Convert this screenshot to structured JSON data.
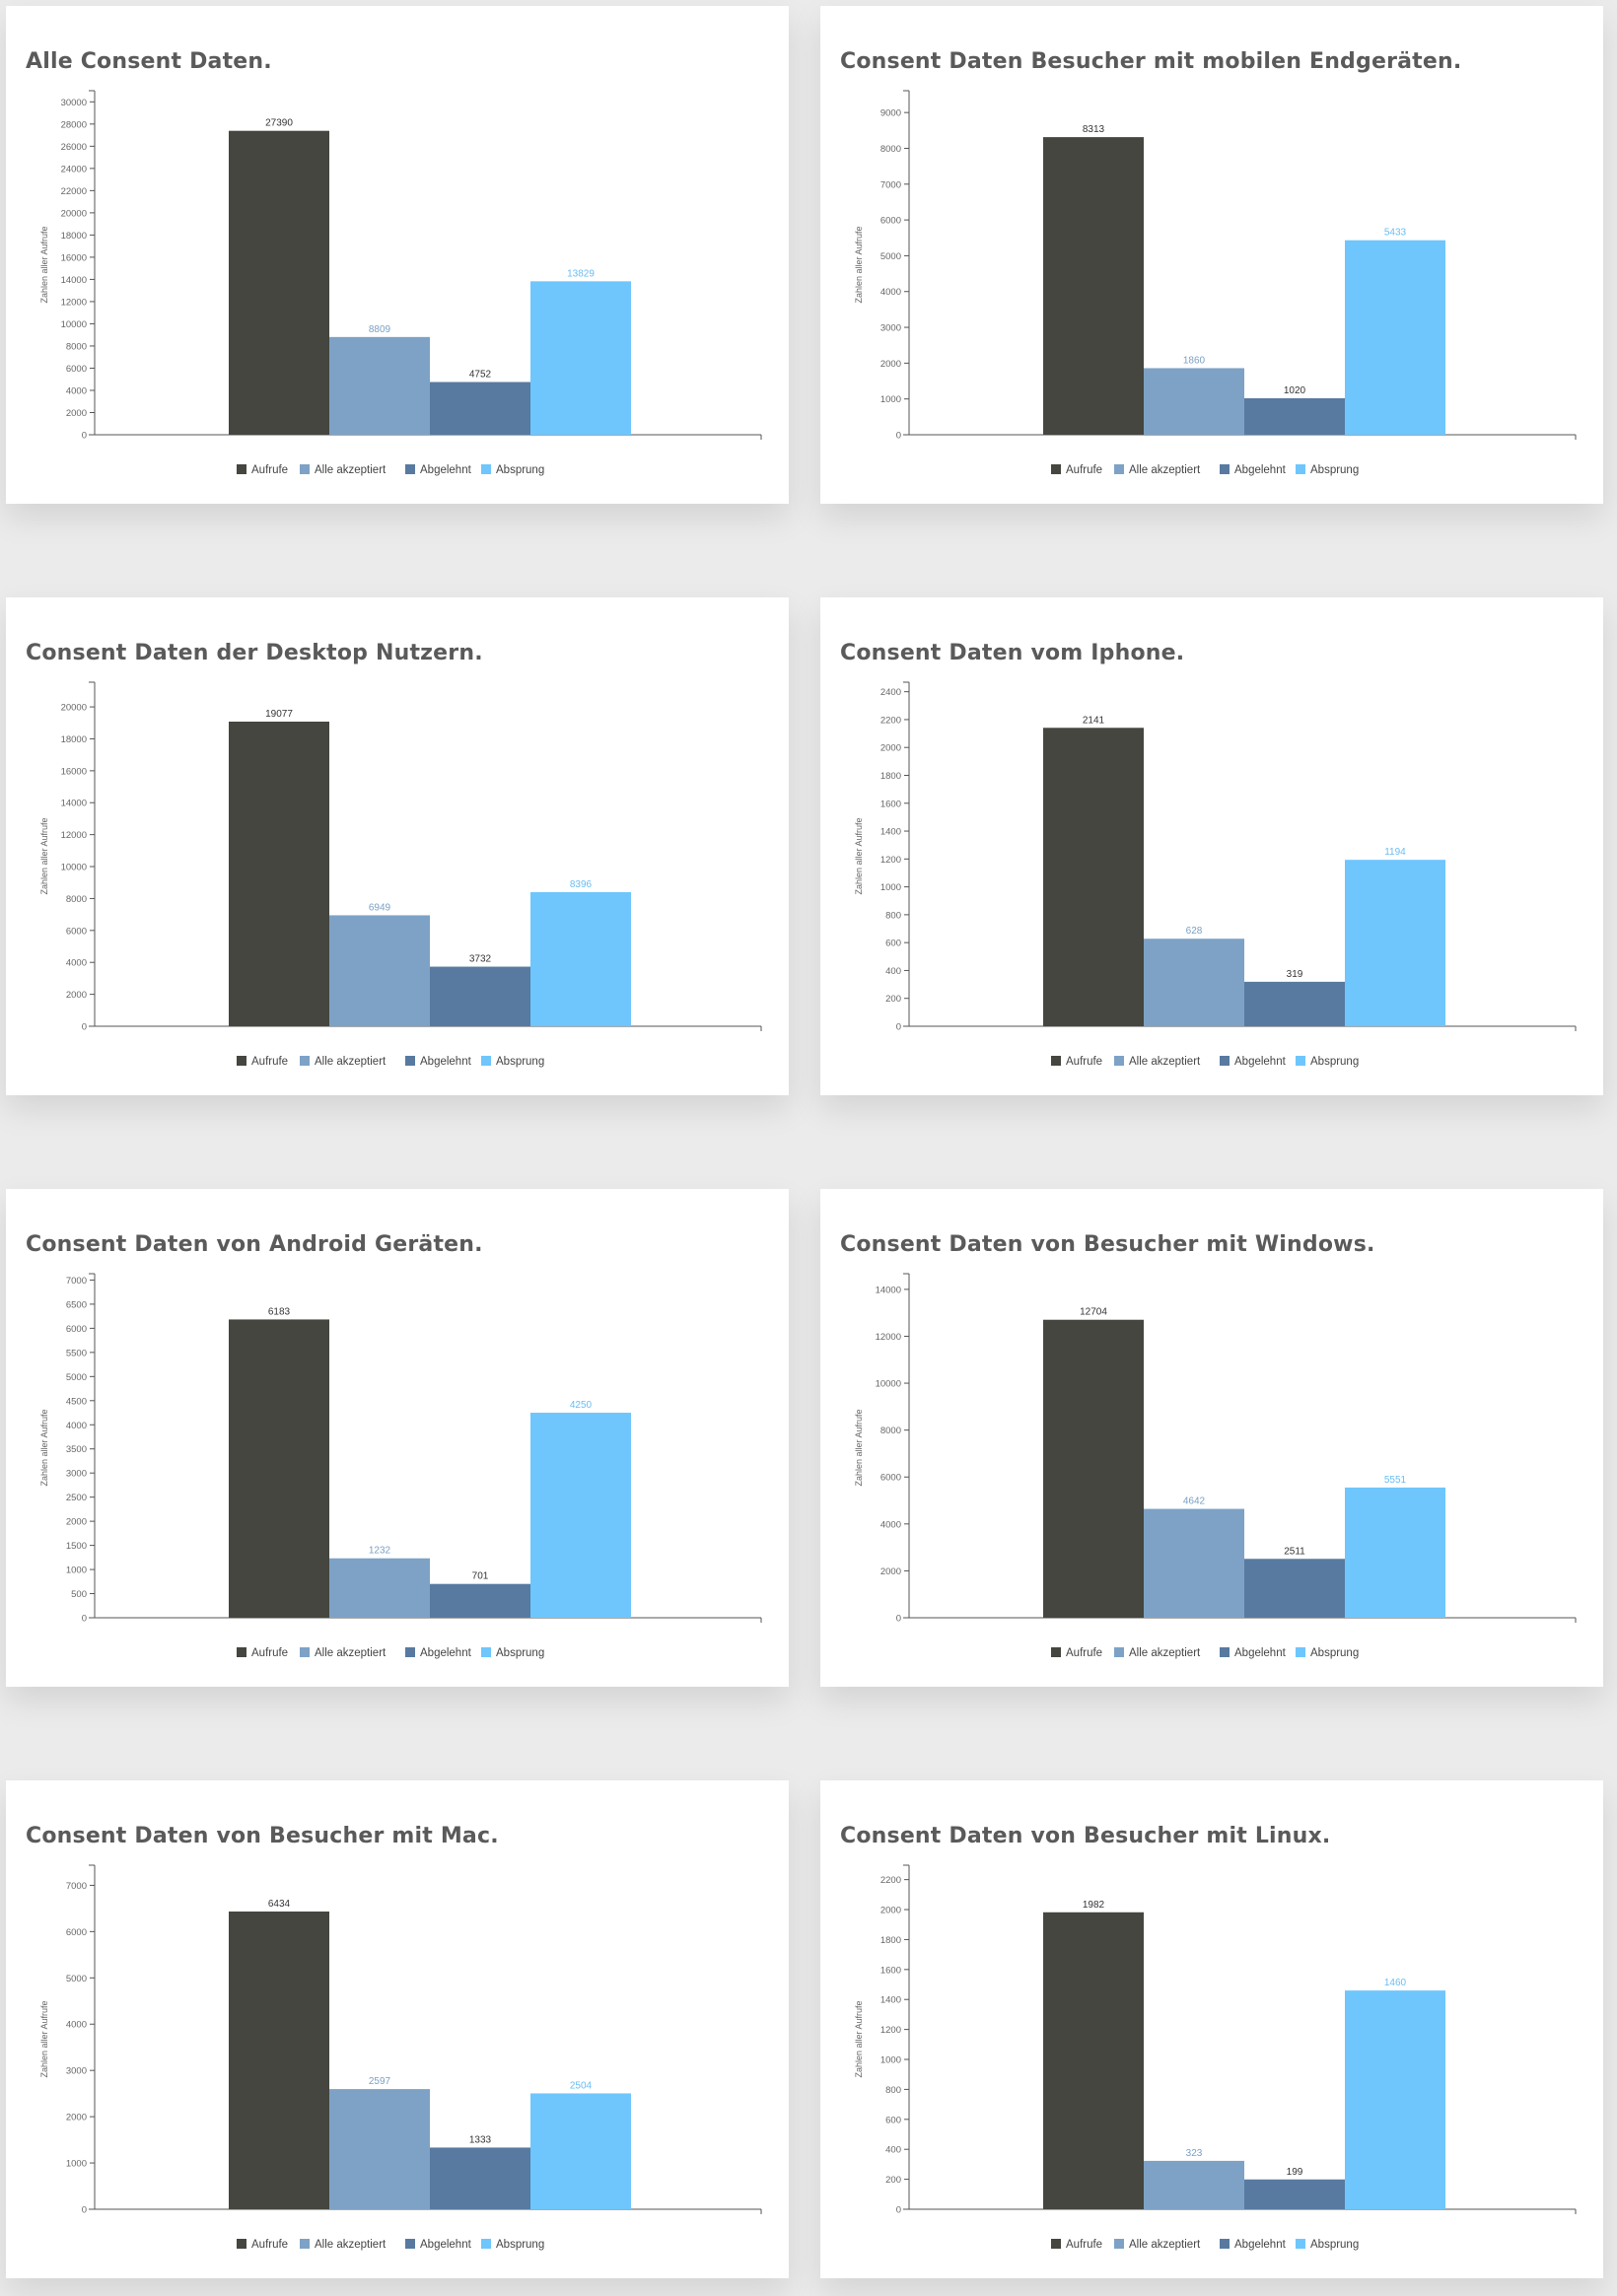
{
  "colors": {
    "page_bg": "#ebebeb",
    "card_bg": "#ffffff",
    "title": "#5a5a5a",
    "series": [
      "#44463f",
      "#7da2c6",
      "#587aa0",
      "#6ec6fd"
    ],
    "label": [
      "#333333",
      "#7aa0c4",
      "#333333",
      "#67bdf4"
    ]
  },
  "legend_labels": [
    "Aufrufe",
    "Alle akzeptiert",
    "Abgelehnt",
    "Absprung"
  ],
  "chart_data": [
    {
      "type": "bar",
      "title": "Alle Consent Daten.",
      "ylabel": "Zahlen aller Aufrufe",
      "categories": [
        "Aufrufe",
        "Alle akzeptiert",
        "Abgelehnt",
        "Absprung"
      ],
      "values": [
        27390,
        8809,
        4752,
        13829
      ],
      "ylim": [
        0,
        30650
      ],
      "yticks": [
        0,
        2000,
        4000,
        6000,
        8000,
        10000,
        12000,
        14000,
        16000,
        18000,
        20000,
        22000,
        24000,
        26000,
        28000,
        30000
      ]
    },
    {
      "type": "bar",
      "title": "Consent Daten Besucher mit mobilen Endgeräten.",
      "ylabel": "Zahlen aller Aufrufe",
      "categories": [
        "Aufrufe",
        "Alle akzeptiert",
        "Abgelehnt",
        "Absprung"
      ],
      "values": [
        8313,
        1860,
        1020,
        5433
      ],
      "ylim": [
        0,
        9500
      ],
      "yticks": [
        0,
        1000,
        2000,
        3000,
        4000,
        5000,
        6000,
        7000,
        8000,
        9000
      ]
    },
    {
      "type": "bar",
      "title": "Consent Daten der Desktop Nutzern.",
      "ylabel": "Zahlen aller Aufrufe",
      "categories": [
        "Aufrufe",
        "Alle akzeptiert",
        "Abgelehnt",
        "Absprung"
      ],
      "values": [
        19077,
        6949,
        3732,
        8396
      ],
      "ylim": [
        0,
        21300
      ],
      "yticks": [
        0,
        2000,
        4000,
        6000,
        8000,
        10000,
        12000,
        14000,
        16000,
        18000,
        20000
      ]
    },
    {
      "type": "bar",
      "title": "Consent Daten vom Iphone.",
      "ylabel": "Zahlen aller Aufrufe",
      "categories": [
        "Aufrufe",
        "Alle akzeptiert",
        "Abgelehnt",
        "Absprung"
      ],
      "values": [
        2141,
        628,
        319,
        1194
      ],
      "ylim": [
        0,
        2440
      ],
      "yticks": [
        0,
        200,
        400,
        600,
        800,
        1000,
        1200,
        1400,
        1600,
        1800,
        2000,
        2200,
        2400
      ]
    },
    {
      "type": "bar",
      "title": "Consent Daten von Android Geräten.",
      "ylabel": "Zahlen aller Aufrufe",
      "categories": [
        "Aufrufe",
        "Alle akzeptiert",
        "Abgelehnt",
        "Absprung"
      ],
      "values": [
        6183,
        1232,
        701,
        4250
      ],
      "ylim": [
        0,
        7050
      ],
      "yticks": [
        0,
        500,
        1000,
        1500,
        2000,
        2500,
        3000,
        3500,
        4000,
        4500,
        5000,
        5500,
        6000,
        6500,
        7000
      ]
    },
    {
      "type": "bar",
      "title": "Consent Daten von Besucher mit Windows.",
      "ylabel": "Zahlen aller Aufrufe",
      "categories": [
        "Aufrufe",
        "Alle akzeptiert",
        "Abgelehnt",
        "Absprung"
      ],
      "values": [
        12704,
        4642,
        2511,
        5551
      ],
      "ylim": [
        0,
        14500
      ],
      "yticks": [
        0,
        2000,
        4000,
        6000,
        8000,
        10000,
        12000,
        14000
      ]
    },
    {
      "type": "bar",
      "title": "Consent Daten von Besucher mit Mac.",
      "ylabel": "Zahlen aller Aufrufe",
      "categories": [
        "Aufrufe",
        "Alle akzeptiert",
        "Abgelehnt",
        "Absprung"
      ],
      "values": [
        6434,
        2597,
        1333,
        2504
      ],
      "ylim": [
        0,
        7350
      ],
      "yticks": [
        0,
        1000,
        2000,
        3000,
        4000,
        5000,
        6000,
        7000
      ]
    },
    {
      "type": "bar",
      "title": "Consent Daten von Besucher mit Linux.",
      "ylabel": "Zahlen aller Aufrufe",
      "categories": [
        "Aufrufe",
        "Alle akzeptiert",
        "Abgelehnt",
        "Absprung"
      ],
      "values": [
        1982,
        323,
        199,
        1460
      ],
      "ylim": [
        0,
        2270
      ],
      "yticks": [
        0,
        200,
        400,
        600,
        800,
        1000,
        1200,
        1400,
        1600,
        1800,
        2000,
        2200
      ]
    }
  ]
}
